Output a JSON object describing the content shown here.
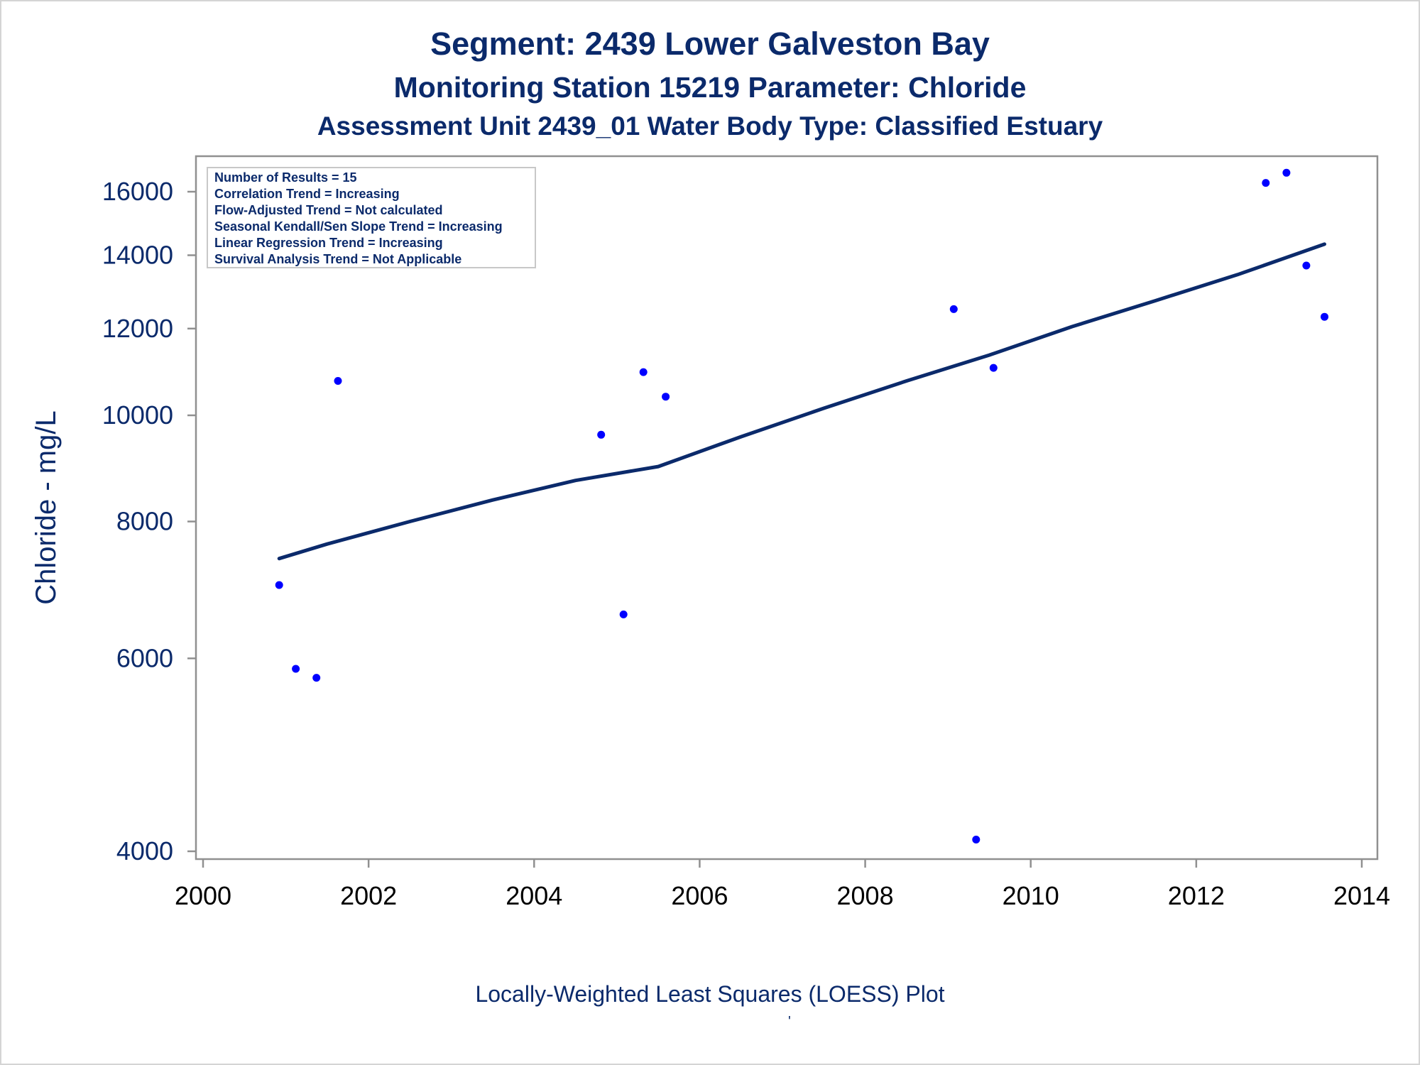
{
  "titles": {
    "title": "Segment: 2439  Lower Galveston Bay",
    "subtitle": "Monitoring Station 15219 Parameter: Chloride",
    "subtitle2": "Assessment Unit 2439_01   Water Body Type: Classified Estuary"
  },
  "footnote": "Locally-Weighted Least Squares (LOESS) Plot",
  "footnote_mark": "'",
  "stats_box": [
    "Number of Results = 15",
    "Correlation Trend = Increasing",
    "Flow-Adjusted Trend = Not calculated",
    "Seasonal Kendall/Sen Slope Trend = Increasing",
    "Linear Regression Trend = Increasing",
    "Survival Analysis Trend = Not Applicable"
  ],
  "colors": {
    "text": "#0b2a6b",
    "points": "#0000ff",
    "loess_line": "#0b2a6b",
    "axis": "#909090"
  },
  "chart_data": {
    "type": "scatter",
    "ylabel": "Chloride - mg/L",
    "xlabel": "",
    "y_scale": "log",
    "xlim": [
      2000,
      2014
    ],
    "ylim": [
      3900,
      16900
    ],
    "x_ticks": [
      "2000",
      "2002",
      "2004",
      "2006",
      "2008",
      "2010",
      "2012",
      "2014"
    ],
    "y_ticks": [
      "4000",
      "6000",
      "8000",
      "10000",
      "12000",
      "14000",
      "16000"
    ],
    "legend": "none",
    "grid": false,
    "series": [
      {
        "type": "scatter",
        "points": [
          {
            "x": 2000.92,
            "y": 7000
          },
          {
            "x": 2001.12,
            "y": 5870
          },
          {
            "x": 2001.37,
            "y": 5760
          },
          {
            "x": 2001.63,
            "y": 10750
          },
          {
            "x": 2004.81,
            "y": 9600
          },
          {
            "x": 2005.08,
            "y": 6580
          },
          {
            "x": 2005.32,
            "y": 10950
          },
          {
            "x": 2005.59,
            "y": 10400
          },
          {
            "x": 2009.07,
            "y": 12500
          },
          {
            "x": 2009.34,
            "y": 4100
          },
          {
            "x": 2009.55,
            "y": 11050
          },
          {
            "x": 2012.84,
            "y": 16300
          },
          {
            "x": 2013.09,
            "y": 16650
          },
          {
            "x": 2013.33,
            "y": 13700
          },
          {
            "x": 2013.55,
            "y": 12300
          }
        ]
      },
      {
        "type": "line",
        "points": [
          {
            "x": 2000.92,
            "y": 7400
          },
          {
            "x": 2001.5,
            "y": 7630
          },
          {
            "x": 2002.5,
            "y": 8000
          },
          {
            "x": 2003.5,
            "y": 8370
          },
          {
            "x": 2004.5,
            "y": 8720
          },
          {
            "x": 2005.5,
            "y": 8980
          },
          {
            "x": 2006.5,
            "y": 9560
          },
          {
            "x": 2007.5,
            "y": 10150
          },
          {
            "x": 2008.5,
            "y": 10750
          },
          {
            "x": 2009.5,
            "y": 11350
          },
          {
            "x": 2010.5,
            "y": 12050
          },
          {
            "x": 2011.5,
            "y": 12720
          },
          {
            "x": 2012.5,
            "y": 13440
          },
          {
            "x": 2013.55,
            "y": 14330
          }
        ]
      }
    ]
  }
}
